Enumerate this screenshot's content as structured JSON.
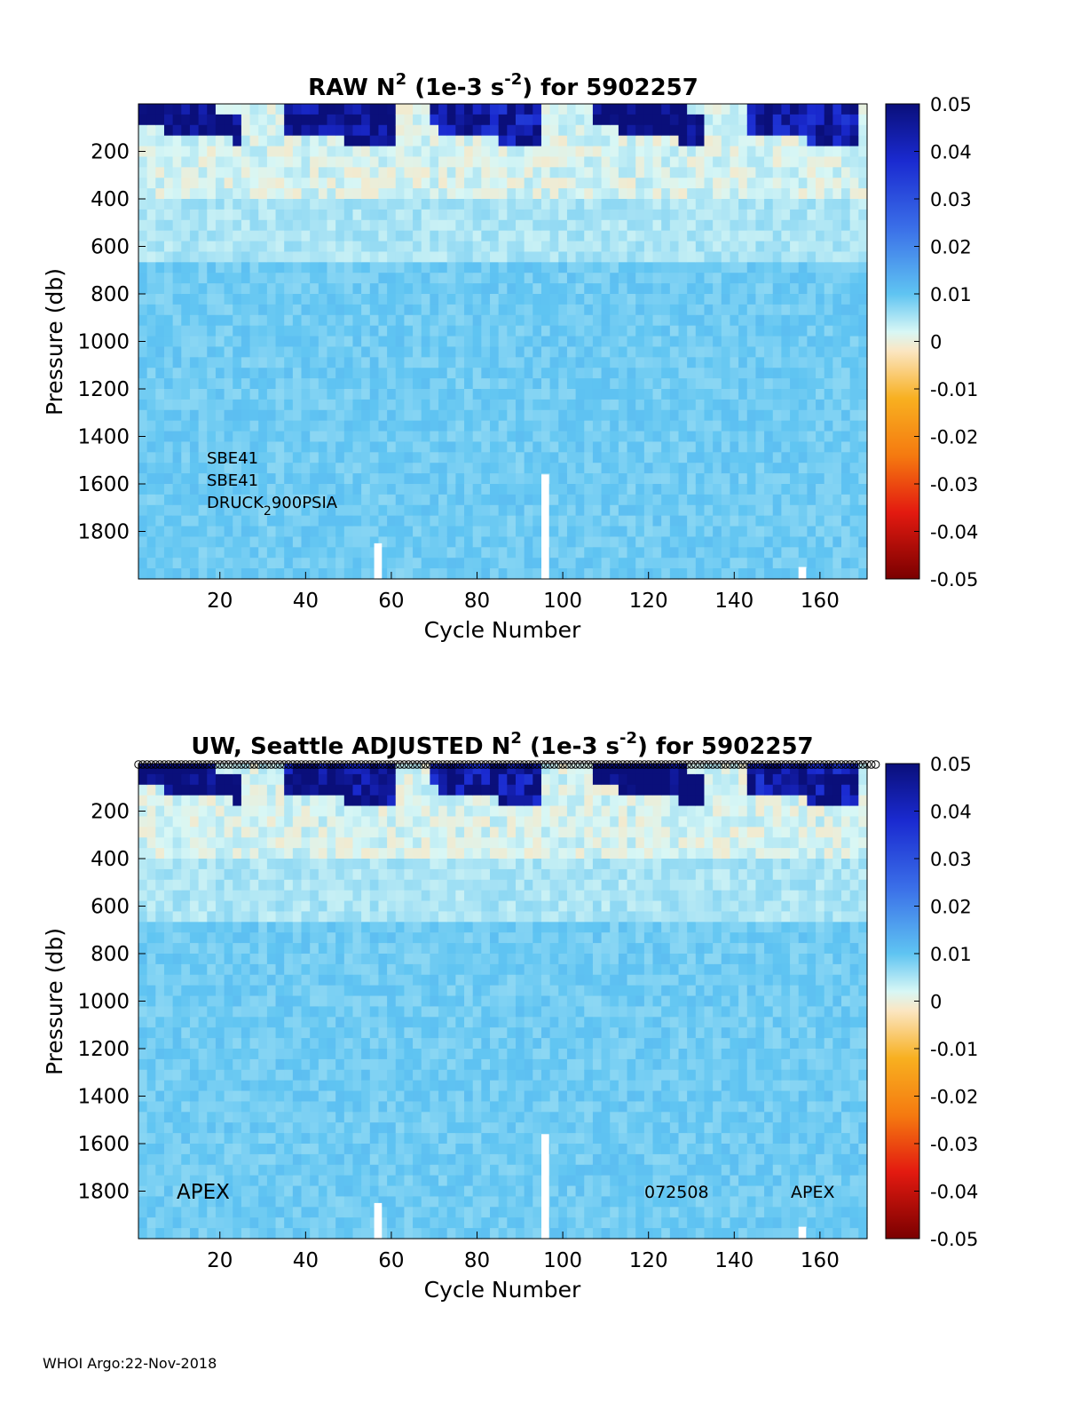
{
  "footer": "WHOI Argo:22-Nov-2018",
  "chart_data": [
    {
      "type": "heatmap",
      "title_parts": [
        "RAW N",
        "2",
        " (1e-3 s",
        "-2",
        ") for 5902257"
      ],
      "xlabel": "Cycle Number",
      "ylabel": "Pressure (db)",
      "xlim": [
        1,
        171
      ],
      "ylim": [
        0,
        2000
      ],
      "y_reversed": true,
      "x_ticks": [
        "20",
        "40",
        "60",
        "80",
        "100",
        "120",
        "140",
        "160"
      ],
      "y_ticks": [
        "200",
        "400",
        "600",
        "800",
        "1000",
        "1200",
        "1400",
        "1600",
        "1800"
      ],
      "colorbar": {
        "range": [
          -0.05,
          0.05
        ],
        "ticks": [
          "0.05",
          "0.04",
          "0.03",
          "0.02",
          "0.01",
          "0",
          "-0.01",
          "-0.02",
          "-0.03",
          "-0.04",
          "-0.05"
        ],
        "colormap": "jet-diverging"
      },
      "annotation_lines": [
        "SBE41",
        "SBE41",
        "DRUCK"
      ],
      "annotation_sub": "2",
      "annotation_tail": "900PSIA",
      "show_markers": false
    },
    {
      "type": "heatmap",
      "title_parts": [
        "UW, Seattle  ADJUSTED N",
        "2",
        " (1e-3 s",
        "-2",
        ") for 5902257"
      ],
      "xlabel": "Cycle Number",
      "ylabel": "Pressure (db)",
      "xlim": [
        1,
        171
      ],
      "ylim": [
        0,
        2000
      ],
      "y_reversed": true,
      "x_ticks": [
        "20",
        "40",
        "60",
        "80",
        "100",
        "120",
        "140",
        "160"
      ],
      "y_ticks": [
        "200",
        "400",
        "600",
        "800",
        "1000",
        "1200",
        "1400",
        "1600",
        "1800"
      ],
      "colorbar": {
        "range": [
          -0.05,
          0.05
        ],
        "ticks": [
          "0.05",
          "0.04",
          "0.03",
          "0.02",
          "0.01",
          "0",
          "-0.01",
          "-0.02",
          "-0.03",
          "-0.04",
          "-0.05"
        ],
        "colormap": "jet-diverging"
      },
      "labels": {
        "left": "APEX",
        "mid": "072508",
        "right": "APEX"
      },
      "show_markers": true
    }
  ]
}
